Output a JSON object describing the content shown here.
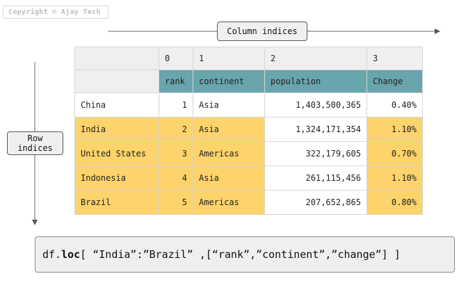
{
  "copyright": "Copyright © Ajay Tech",
  "callouts": {
    "column_indices": "Column indices",
    "row_indices_line1": "Row",
    "row_indices_line2": "indices"
  },
  "table": {
    "column_indices": [
      "0",
      "1",
      "2",
      "3"
    ],
    "columns": [
      "rank",
      "continent",
      "population",
      "Change"
    ],
    "rows": [
      {
        "label": "China",
        "rank": "1",
        "continent": "Asia",
        "population": "1,403,500,365",
        "change": "0.40%",
        "highlight": false
      },
      {
        "label": "India",
        "rank": "2",
        "continent": "Asia",
        "population": "1,324,171,354",
        "change": "1.10%",
        "highlight": true
      },
      {
        "label": "United States",
        "rank": "3",
        "continent": "Americas",
        "population": "322,179,605",
        "change": "0.70%",
        "highlight": true
      },
      {
        "label": "Indonesia",
        "rank": "4",
        "continent": "Asia",
        "population": "261,115,456",
        "change": "1.10%",
        "highlight": true
      },
      {
        "label": "Brazil",
        "rank": "5",
        "continent": "Americas",
        "population": "207,652,865",
        "change": "0.80%",
        "highlight": true
      }
    ]
  },
  "code": {
    "prefix": "df.",
    "keyword": "loc",
    "rest": "[ “India”:”Brazil” ,[“rank”,”continent”,”change”] ]"
  },
  "colors": {
    "header": "#68a5ad",
    "highlight": "#fdd36b",
    "index_bg": "#efefef"
  }
}
